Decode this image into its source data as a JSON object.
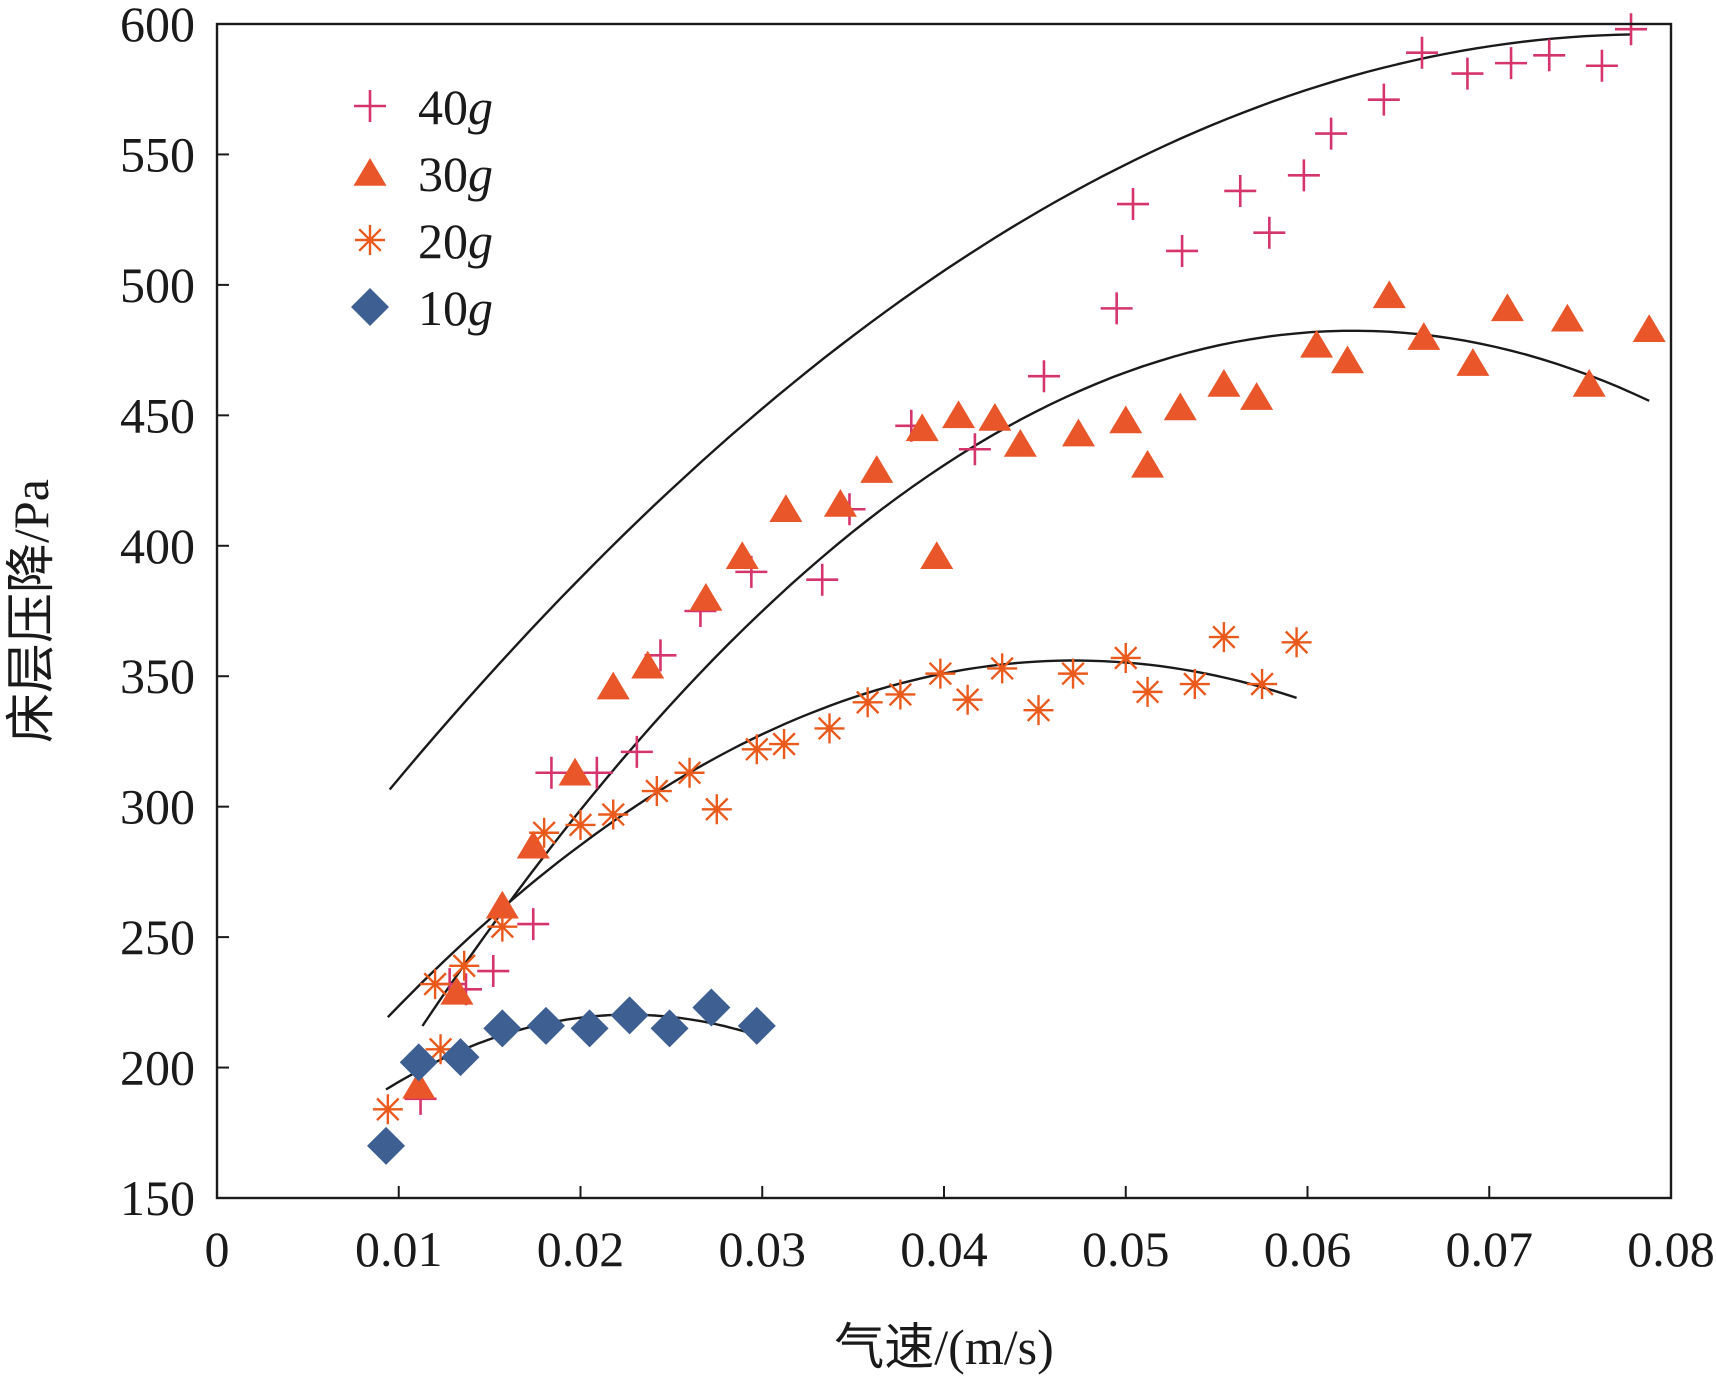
{
  "chart_data": {
    "type": "scatter",
    "title": "",
    "xlabel": "气速/(m/s)",
    "ylabel": "床层压降/Pa",
    "xlim": [
      0,
      0.08
    ],
    "ylim": [
      150,
      600
    ],
    "xticks": [
      0,
      0.01,
      0.02,
      0.03,
      0.04,
      0.05,
      0.06,
      0.07,
      0.08
    ],
    "xtick_labels": [
      "0",
      "0.01",
      "0.02",
      "0.03",
      "0.04",
      "0.05",
      "0.06",
      "0.07",
      "0.08"
    ],
    "yticks": [
      150,
      200,
      250,
      300,
      350,
      400,
      450,
      500,
      550,
      600
    ],
    "ytick_labels": [
      "150",
      "200",
      "250",
      "300",
      "350",
      "400",
      "450",
      "500",
      "550",
      "600"
    ],
    "grid": false,
    "legend_position": "top-left",
    "series": [
      {
        "name": "40g",
        "label_num": "40",
        "label_unit": "g",
        "marker": "plus",
        "color": "#d6356b",
        "points": [
          [
            0.0112,
            188
          ],
          [
            0.0128,
            232
          ],
          [
            0.0137,
            230
          ],
          [
            0.0152,
            237
          ],
          [
            0.0174,
            255
          ],
          [
            0.0184,
            313
          ],
          [
            0.0209,
            313
          ],
          [
            0.0231,
            321
          ],
          [
            0.0244,
            358
          ],
          [
            0.0266,
            375
          ],
          [
            0.0294,
            390
          ],
          [
            0.0333,
            387
          ],
          [
            0.0348,
            414
          ],
          [
            0.0382,
            446
          ],
          [
            0.0417,
            437
          ],
          [
            0.0455,
            465
          ],
          [
            0.0495,
            491
          ],
          [
            0.0504,
            531
          ],
          [
            0.0531,
            513
          ],
          [
            0.0563,
            536
          ],
          [
            0.0579,
            520
          ],
          [
            0.0598,
            542
          ],
          [
            0.0613,
            558
          ],
          [
            0.0642,
            571
          ],
          [
            0.0663,
            589
          ],
          [
            0.0688,
            581
          ],
          [
            0.0712,
            585
          ],
          [
            0.0733,
            588
          ],
          [
            0.0762,
            584
          ],
          [
            0.0778,
            598
          ]
        ],
        "fit": {
          "a": -60357,
          "b": 9507,
          "c": 221.7,
          "x_range": [
            0.0095,
            0.0778
          ]
        }
      },
      {
        "name": "30g",
        "label_num": "30",
        "label_unit": "g",
        "marker": "triangle",
        "color": "#e8562a",
        "points": [
          [
            0.0111,
            193
          ],
          [
            0.0132,
            229
          ],
          [
            0.0157,
            262
          ],
          [
            0.0174,
            285
          ],
          [
            0.0197,
            313
          ],
          [
            0.0218,
            346
          ],
          [
            0.0237,
            354
          ],
          [
            0.0269,
            380
          ],
          [
            0.0289,
            396
          ],
          [
            0.0313,
            414
          ],
          [
            0.0343,
            416
          ],
          [
            0.0363,
            429
          ],
          [
            0.0388,
            445
          ],
          [
            0.0396,
            396
          ],
          [
            0.0408,
            450
          ],
          [
            0.0428,
            449
          ],
          [
            0.0442,
            439
          ],
          [
            0.0474,
            443
          ],
          [
            0.05,
            448
          ],
          [
            0.0512,
            431
          ],
          [
            0.053,
            453
          ],
          [
            0.0554,
            462
          ],
          [
            0.0572,
            457
          ],
          [
            0.0605,
            477
          ],
          [
            0.0622,
            471
          ],
          [
            0.0645,
            496
          ],
          [
            0.0664,
            480
          ],
          [
            0.0691,
            470
          ],
          [
            0.071,
            491
          ],
          [
            0.0743,
            487
          ],
          [
            0.0755,
            462
          ],
          [
            0.0788,
            483
          ]
        ],
        "fit": {
          "a": -101530,
          "b": 12698,
          "c": 85.4,
          "x_range": [
            0.0113,
            0.0788
          ]
        }
      },
      {
        "name": "20g",
        "label_num": "20",
        "label_unit": "g",
        "marker": "asterisk",
        "color": "#ea5a1c",
        "points": [
          [
            0.0094,
            184
          ],
          [
            0.012,
            232
          ],
          [
            0.0123,
            207
          ],
          [
            0.0136,
            239
          ],
          [
            0.0157,
            254
          ],
          [
            0.018,
            290
          ],
          [
            0.02,
            293
          ],
          [
            0.0218,
            297
          ],
          [
            0.0242,
            306
          ],
          [
            0.026,
            313
          ],
          [
            0.0275,
            299
          ],
          [
            0.0297,
            322
          ],
          [
            0.0312,
            324
          ],
          [
            0.0337,
            330
          ],
          [
            0.0358,
            340
          ],
          [
            0.0376,
            343
          ],
          [
            0.0398,
            351
          ],
          [
            0.0413,
            341
          ],
          [
            0.0432,
            353
          ],
          [
            0.0452,
            337
          ],
          [
            0.0471,
            351
          ],
          [
            0.05,
            357
          ],
          [
            0.0512,
            344
          ],
          [
            0.0538,
            347
          ],
          [
            0.0554,
            365
          ],
          [
            0.0575,
            347
          ],
          [
            0.0594,
            363
          ]
        ],
        "fit": {
          "a": -95820,
          "b": 9040,
          "c": 142.8,
          "x_range": [
            0.0094,
            0.0594
          ]
        }
      },
      {
        "name": "10g",
        "label_num": "10",
        "label_unit": "g",
        "marker": "diamond",
        "color": "#3d5f91",
        "points": [
          [
            0.0093,
            170
          ],
          [
            0.0111,
            202
          ],
          [
            0.0134,
            204
          ],
          [
            0.0157,
            215
          ],
          [
            0.0181,
            216
          ],
          [
            0.0205,
            215
          ],
          [
            0.0227,
            220
          ],
          [
            0.0249,
            215
          ],
          [
            0.0272,
            223
          ],
          [
            0.0297,
            216
          ]
        ],
        "fit": {
          "a": -160120,
          "b": 7263,
          "c": 137.9,
          "x_range": [
            0.0093,
            0.0297
          ]
        }
      }
    ],
    "fit_line_color": "#1a1a1a"
  }
}
